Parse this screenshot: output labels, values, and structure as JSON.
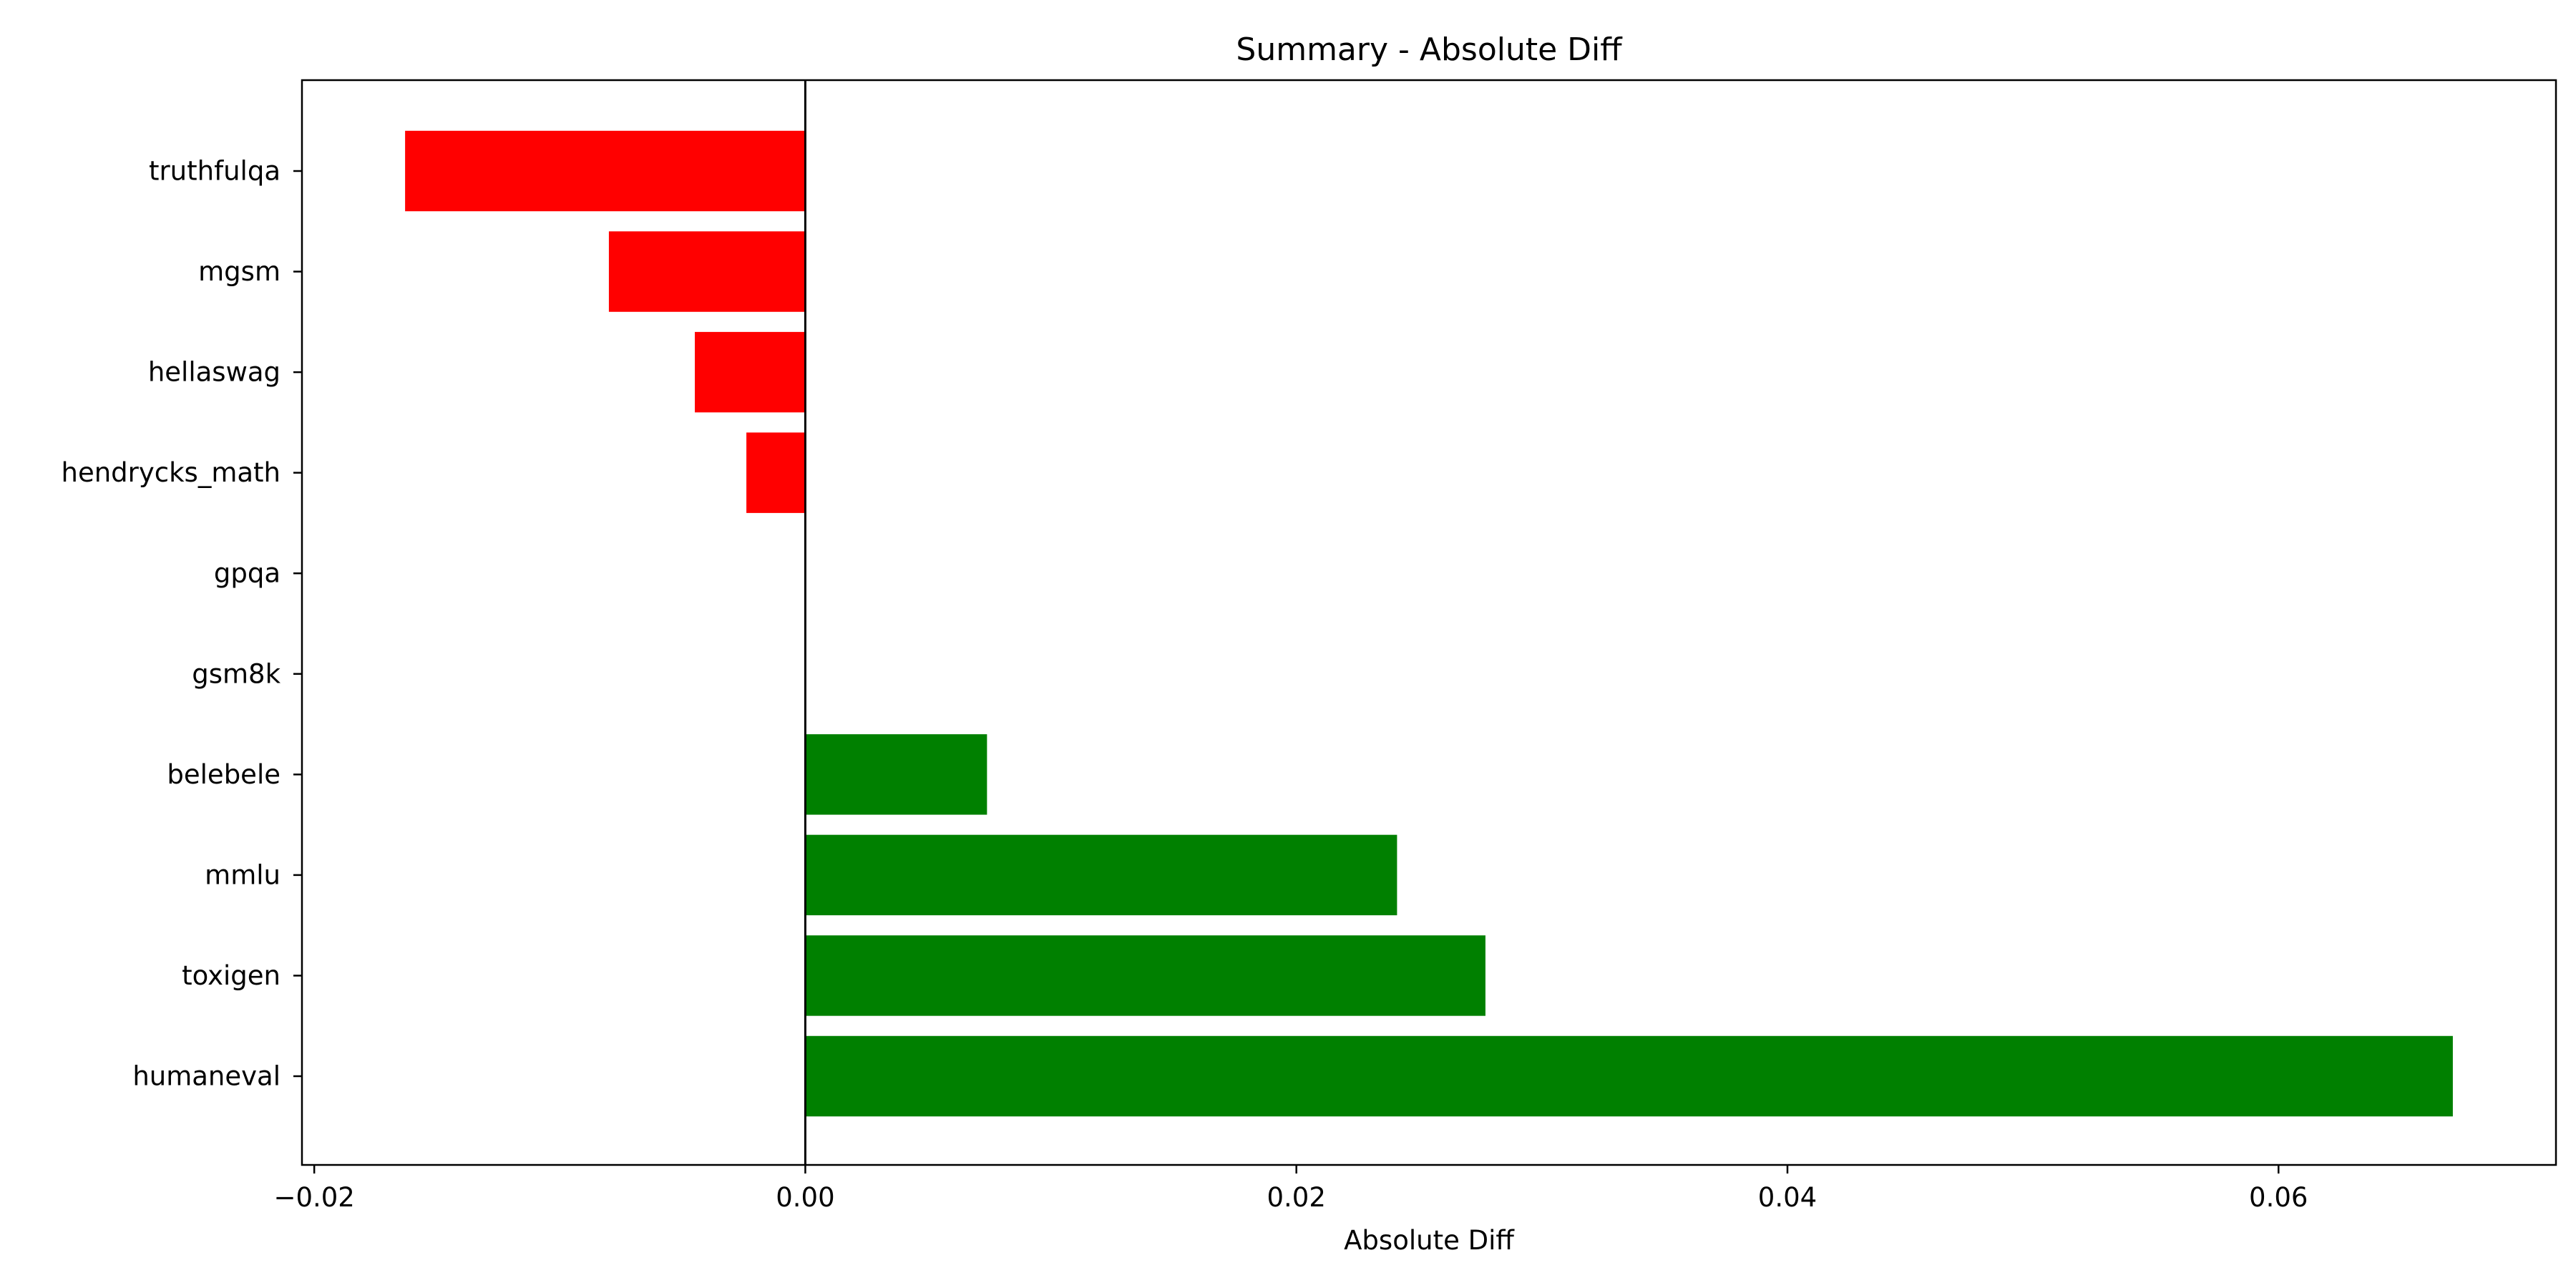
{
  "chart_data": {
    "type": "bar",
    "orientation": "horizontal",
    "title": "Summary - Absolute Diff",
    "xlabel": "Absolute Diff",
    "ylabel": "",
    "categories": [
      "truthfulqa",
      "mgsm",
      "hellaswag",
      "hendrycks_math",
      "gpqa",
      "gsm8k",
      "belebele",
      "mmlu",
      "toxigen",
      "humaneval"
    ],
    "values": [
      -0.0163,
      -0.008,
      -0.0045,
      -0.0024,
      0.0,
      0.0,
      0.0074,
      0.0241,
      0.0277,
      0.0671
    ],
    "xlim": [
      -0.0205,
      0.0713
    ],
    "xticks": [
      -0.02,
      0.0,
      0.02,
      0.04,
      0.06
    ],
    "xtick_labels": [
      "−0.02",
      "0.00",
      "0.02",
      "0.04",
      "0.06"
    ],
    "reference_line": 0.0,
    "grid": false,
    "colors": {
      "negative": "#ff0000",
      "positive": "#008000",
      "axis": "#000000"
    }
  }
}
